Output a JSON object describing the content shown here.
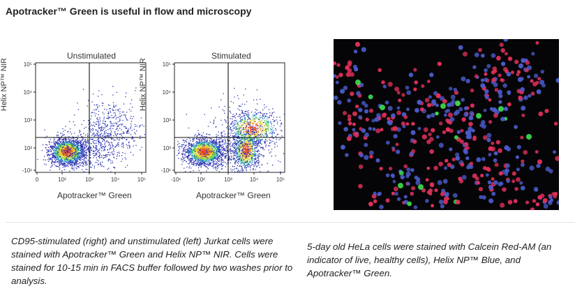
{
  "heading": "Apotracker™ Green is useful in flow and microscopy",
  "plots": [
    {
      "title": "Unstimulated",
      "y_label": "Helix NP™ NIR",
      "x_label": "Apotracker™ Green",
      "y_ticks": [
        "10⁵",
        "10⁴",
        "10³",
        "10²",
        "-10¹"
      ],
      "x_ticks": [
        "0",
        "10²",
        "10³",
        "10⁴",
        "10⁵"
      ]
    },
    {
      "title": "Stimulated",
      "y_label": "Helix NP™ NIR",
      "x_label": "Apotracker™ Green",
      "y_ticks": [
        "10⁵",
        "10⁴",
        "10³",
        "10²",
        "-10¹"
      ],
      "x_ticks": [
        "-10¹",
        "10²",
        "10³",
        "10⁴",
        "10⁵"
      ]
    }
  ],
  "captions": {
    "left": "CD95-stimulated (right) and unstimulated (left) Jurkat cells were stained with Apotracker™ Green and Helix NP™ NIR. Cells were stained for 10-15 min in FACS buffer followed by two washes prior to analysis.",
    "right": "5-day old HeLa cells were stained with Calcein Red-AM (an indicator of live, healthy cells), Helix NP™ Blue, and Apotracker™ Green."
  },
  "colors": {
    "cell_blue": "#4a5ac8",
    "cell_red": "#e0305a",
    "cell_green": "#3ce050",
    "background_micro": "#050507"
  }
}
